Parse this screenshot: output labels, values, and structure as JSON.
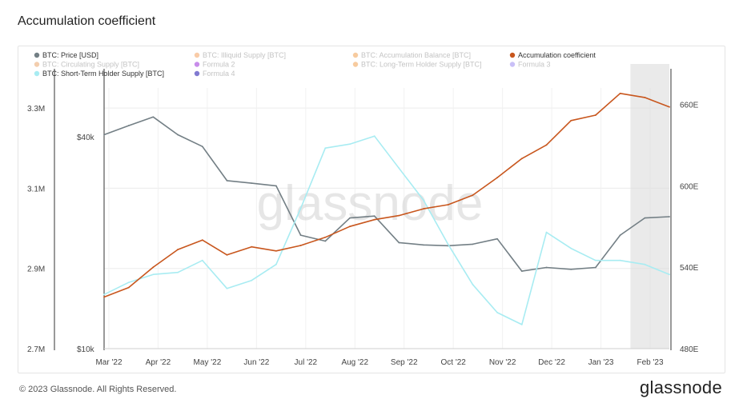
{
  "page": {
    "title": "Accumulation coefficient",
    "copyright": "© 2023 Glassnode. All Rights Reserved.",
    "brand": "glassnode",
    "watermark": "glassnode"
  },
  "colors": {
    "price": "#8e9a9c",
    "illiquid": "#f4a261",
    "circulating": "#e9a56b",
    "formula2": "#9b30d9",
    "short_term": "#a8ecf2",
    "formula4": "#1a0dab",
    "accum_balance": "#f0a050",
    "accum_coeff": "#c8561d",
    "lth": "#f0a050",
    "formula3": "#9d8cf0"
  },
  "legend": [
    {
      "label": "BTC: Price [USD]",
      "color": "#737f85",
      "disabled": false
    },
    {
      "label": "BTC: Illiquid Supply [BTC]",
      "color": "#f4a261",
      "disabled": true
    },
    {
      "label": "BTC: Accumulation Balance [BTC]",
      "color": "#f0a050",
      "disabled": true
    },
    {
      "label": "Accumulation coefficient",
      "color": "#c8561d",
      "disabled": false
    },
    {
      "label": "BTC: Circulating Supply [BTC]",
      "color": "#e9a56b",
      "disabled": true
    },
    {
      "label": "Formula 2",
      "color": "#9b30d9",
      "disabled": true
    },
    {
      "label": "BTC: Long-Term Holder Supply [BTC]",
      "color": "#f0a050",
      "disabled": true
    },
    {
      "label": "Formula 3",
      "color": "#9d8cf0",
      "disabled": true
    },
    {
      "label": "BTC: Short-Term Holder Supply [BTC]",
      "color": "#a8ecf2",
      "disabled": false
    },
    {
      "label": "Formula 4",
      "color": "#1a0dab",
      "disabled": true
    }
  ],
  "chart_data": {
    "type": "line",
    "x_ticks": [
      "Mar '22",
      "Apr '22",
      "May '22",
      "Jun '22",
      "Jul '22",
      "Aug '22",
      "Sep '22",
      "Oct '22",
      "Nov '22",
      "Dec '22",
      "Jan '23",
      "Feb '23"
    ],
    "x": [
      "Mar '22",
      "mid",
      "Apr '22",
      "mid",
      "May '22",
      "mid",
      "Jun '22",
      "mid",
      "Jul '22",
      "mid",
      "Aug '22",
      "mid",
      "Sep '22",
      "mid",
      "Oct '22",
      "mid",
      "Nov '22",
      "mid",
      "Dec '22",
      "mid",
      "Jan '23",
      "mid",
      "Feb '23",
      "end"
    ],
    "left_axis_supply": {
      "ticks": [
        "3.3M",
        "3.1M",
        "2.9M",
        "2.7M"
      ],
      "tick_values": [
        3300000,
        3100000,
        2900000,
        2700000
      ],
      "range": [
        2700000,
        3350000
      ]
    },
    "left_axis_price": {
      "ticks": [
        "$40k",
        "$10k"
      ],
      "scale": "log"
    },
    "right_axis": {
      "ticks": [
        "660E",
        "600E",
        "540E",
        "480E"
      ],
      "tick_values": [
        660,
        600,
        540,
        480
      ],
      "range": [
        480,
        672
      ]
    },
    "grid": true,
    "shaded_region_start": "late Jan '23",
    "series": [
      {
        "name": "BTC: Price [USD]",
        "axis": "price",
        "values": [
          40500,
          43000,
          45500,
          40500,
          37500,
          30000,
          29500,
          29000,
          21000,
          20200,
          23500,
          23800,
          20000,
          19700,
          19600,
          19800,
          20500,
          16600,
          17000,
          16800,
          17000,
          21000,
          23500,
          23700
        ]
      },
      {
        "name": "BTC: Short-Term Holder Supply [BTC]",
        "axis": "supply",
        "values": [
          2835000,
          2865000,
          2885000,
          2890000,
          2920000,
          2850000,
          2870000,
          2910000,
          3050000,
          3200000,
          3210000,
          3230000,
          3150000,
          3070000,
          2960000,
          2860000,
          2790000,
          2760000,
          2990000,
          2950000,
          2920000,
          2920000,
          2910000,
          2885000
        ]
      },
      {
        "name": "Accumulation coefficient",
        "axis": "right",
        "values": [
          518,
          525,
          540,
          553,
          560,
          549,
          555,
          552,
          556,
          562,
          570,
          575,
          578,
          583,
          586,
          593,
          606,
          620,
          630,
          648,
          652,
          668,
          665,
          658
        ]
      }
    ]
  }
}
